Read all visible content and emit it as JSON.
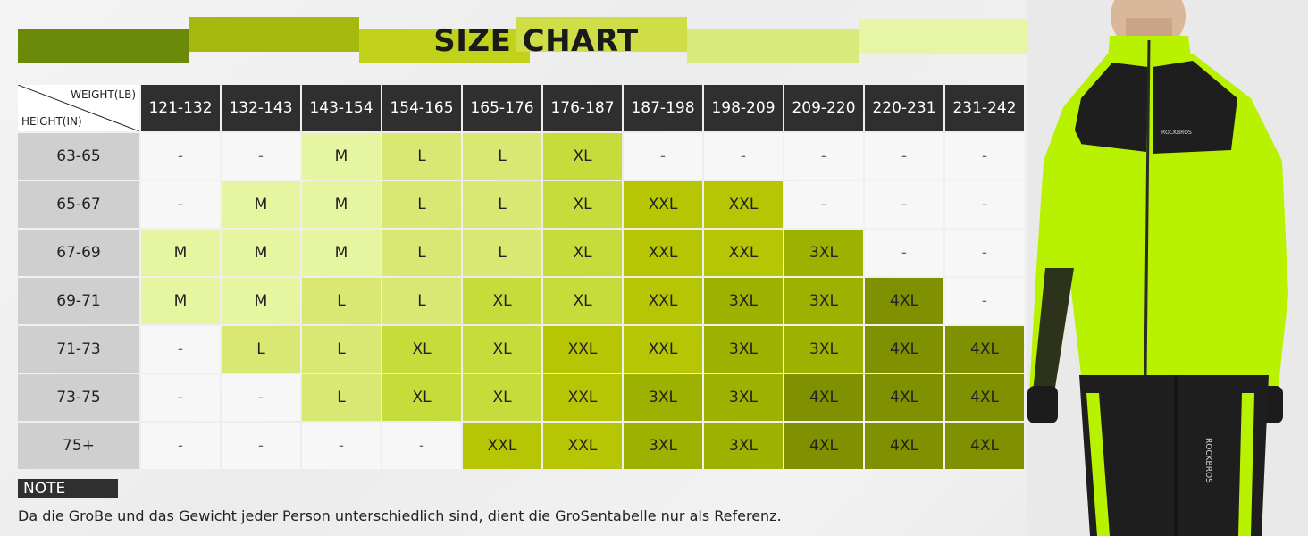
{
  "title": "SIZE CHART",
  "colors": {
    "bar1": "#6b8a0a",
    "bar2": "#a4b80e",
    "bar3": "#c2d21a",
    "bar4": "#cfde47",
    "bar5": "#d9ea7c",
    "bar6": "#e6f6a4",
    "header_bg": "#2f2f2f",
    "row_head_bg": "#cfcfcf",
    "jacket_green": "#b8f200"
  },
  "chart_data": {
    "type": "table",
    "title": "SIZE CHART",
    "column_axis_label": "WEIGHT(LB)",
    "row_axis_label": "HEIGHT(IN)",
    "columns": [
      "121-132",
      "132-143",
      "143-154",
      "154-165",
      "165-176",
      "176-187",
      "187-198",
      "198-209",
      "209-220",
      "220-231",
      "231-242"
    ],
    "rows": [
      {
        "height": "63-65",
        "sizes": [
          "-",
          "-",
          "M",
          "L",
          "L",
          "XL",
          "-",
          "-",
          "-",
          "-",
          "-"
        ]
      },
      {
        "height": "65-67",
        "sizes": [
          "-",
          "M",
          "M",
          "L",
          "L",
          "XL",
          "XXL",
          "XXL",
          "-",
          "-",
          "-"
        ]
      },
      {
        "height": "67-69",
        "sizes": [
          "M",
          "M",
          "M",
          "L",
          "L",
          "XL",
          "XXL",
          "XXL",
          "3XL",
          "-",
          "-"
        ]
      },
      {
        "height": "69-71",
        "sizes": [
          "M",
          "M",
          "L",
          "L",
          "XL",
          "XL",
          "XXL",
          "3XL",
          "3XL",
          "4XL",
          "-"
        ]
      },
      {
        "height": "71-73",
        "sizes": [
          "-",
          "L",
          "L",
          "XL",
          "XL",
          "XXL",
          "XXL",
          "3XL",
          "3XL",
          "4XL",
          "4XL"
        ]
      },
      {
        "height": "73-75",
        "sizes": [
          "-",
          "-",
          "L",
          "XL",
          "XL",
          "XXL",
          "3XL",
          "3XL",
          "4XL",
          "4XL",
          "4XL"
        ]
      },
      {
        "height": "75+",
        "sizes": [
          "-",
          "-",
          "-",
          "-",
          "XXL",
          "XXL",
          "3XL",
          "3XL",
          "4XL",
          "4XL",
          "4XL"
        ]
      }
    ]
  },
  "note": {
    "label": "NOTE",
    "text": "Da die GroBe und das Gewicht jeder Person unterschiedlich sind, dient die GroSentabelle nur als Referenz."
  },
  "model": {
    "brand_chest": "ROCKBROS",
    "brand_leg": "ROCKBROS"
  }
}
